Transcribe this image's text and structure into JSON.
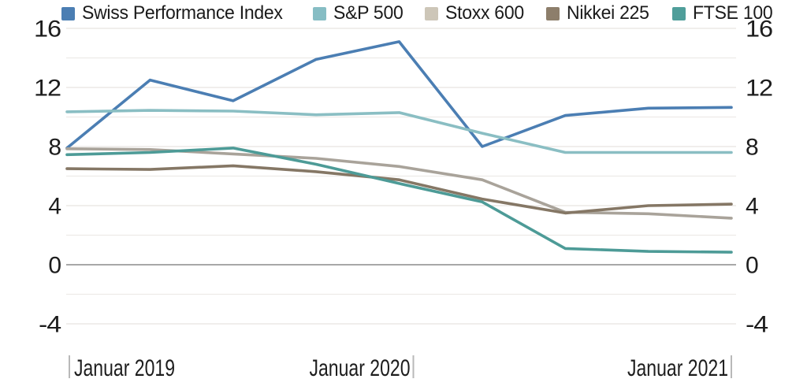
{
  "chart_data": {
    "type": "line",
    "title": "",
    "num_points": 9,
    "x_tick_labels": [
      "Januar 2019",
      "Januar 2020",
      "Januar 2021"
    ],
    "x_tick_indices": [
      0,
      4,
      8
    ],
    "y_ticks": [
      "16",
      "12",
      "8",
      "4",
      "0",
      "-4"
    ],
    "y_tick_values": [
      16,
      12,
      8,
      4,
      0,
      -4
    ],
    "ylim": [
      -4,
      16
    ],
    "grid_step": 2,
    "grid": true,
    "legend_position": "top",
    "y_axis_labels_both_sides": true,
    "series": [
      {
        "name": "Swiss Performance Index",
        "color": "#4b7eb3",
        "legend_color": "#4b7eb3",
        "values": [
          7.9,
          12.5,
          11.1,
          13.9,
          15.1,
          8.0,
          10.1,
          10.6,
          10.65
        ]
      },
      {
        "name": "S&P 500",
        "color": "#8abec3",
        "legend_color": "#86bdc4",
        "values": [
          10.35,
          10.45,
          10.4,
          10.15,
          10.3,
          8.9,
          7.6,
          7.6,
          7.6
        ]
      },
      {
        "name": "Stoxx 600",
        "color": "#a9a39a",
        "legend_color": "#cdc6b8",
        "values": [
          7.85,
          7.8,
          7.5,
          7.2,
          6.65,
          5.75,
          3.55,
          3.45,
          3.15
        ]
      },
      {
        "name": "Nikkei 225",
        "color": "#857765",
        "legend_color": "#8d7e6b",
        "values": [
          6.5,
          6.45,
          6.7,
          6.3,
          5.75,
          4.45,
          3.5,
          4.0,
          4.1
        ]
      },
      {
        "name": "FTSE 100",
        "color": "#4d9b97",
        "legend_color": "#4f9e9a",
        "values": [
          7.45,
          7.6,
          7.9,
          6.8,
          5.5,
          4.25,
          1.1,
          0.9,
          0.85
        ]
      }
    ],
    "colors": {
      "grid_minor": "#edebe8",
      "grid_major": "#e6e4e1",
      "zero_line": "#8b8b8b",
      "tick_mark": "#b9b9b9",
      "axis_text": "#1d1d1d"
    }
  }
}
